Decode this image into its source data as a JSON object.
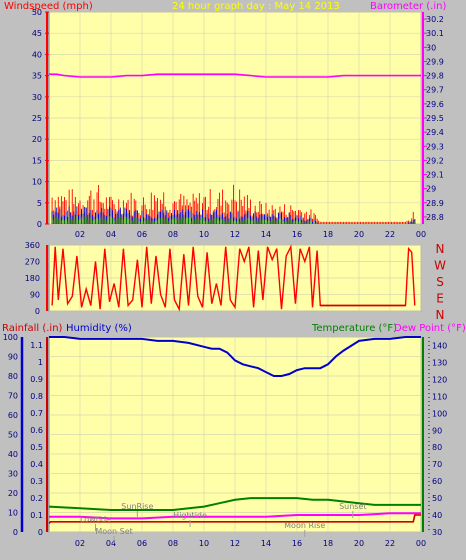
{
  "colors": {
    "background": "#c0c0c0",
    "plot": "#ffffaa",
    "grid": "#d8d8b0",
    "wind_axis": "#ff0000",
    "baro_axis": "#ff00ff",
    "humidity": "#0000cc",
    "temperature": "#008000",
    "dewpoint": "#ff00ff",
    "rain": "#cc0000",
    "wind_avg": "#0000cc",
    "wind_calm": "#008000",
    "title": "#ffff00"
  },
  "chart_data": [
    {
      "type": "line",
      "id": "wind-baro",
      "title": "24 hour graph day : May 14 2013",
      "left_label": "Windspeed (mph)",
      "right_label": "Barometer (.in)",
      "x_ticks": [
        "02",
        "04",
        "06",
        "08",
        "10",
        "12",
        "14",
        "16",
        "18",
        "20",
        "22",
        "00"
      ],
      "y_left_ticks": [
        "0",
        "5",
        "10",
        "15",
        "20",
        "25",
        "30",
        "35",
        "40",
        "45",
        "50"
      ],
      "y_left_range": [
        0,
        50
      ],
      "y_right_ticks": [
        "28.8",
        "28.9",
        "29",
        "29.1",
        "29.2",
        "29.3",
        "29.4",
        "29.5",
        "29.6",
        "29.7",
        "29.8",
        "29.9",
        "30",
        "30.1",
        "30.2"
      ],
      "y_right_range": [
        28.75,
        30.25
      ],
      "grid": true,
      "series": [
        {
          "key": "gust",
          "color_key": "wind_axis",
          "x": [
            0.2,
            1,
            2,
            3,
            4,
            5,
            6,
            7,
            8,
            9,
            10,
            11,
            12,
            13,
            14,
            15,
            16,
            17,
            17.5,
            18,
            19,
            20,
            21,
            22,
            22.5,
            23,
            23.6
          ],
          "values": [
            6,
            5,
            5,
            6,
            4,
            5,
            4,
            6,
            5,
            4,
            5,
            5,
            6,
            4,
            3,
            3,
            3,
            2,
            0.5,
            0.5,
            0.5,
            0.5,
            0.5,
            0.5,
            0.5,
            0.5,
            2
          ]
        },
        {
          "key": "average",
          "color_key": "wind_avg",
          "x": [
            0.2,
            2,
            4,
            6,
            8,
            10,
            12,
            14,
            16,
            17,
            17.5,
            23,
            23.6
          ],
          "values": [
            3,
            3,
            3,
            2.5,
            2.5,
            2.5,
            2.5,
            2,
            2,
            1,
            0,
            0,
            1
          ]
        },
        {
          "key": "barometer",
          "color_key": "baro_axis",
          "x": [
            0,
            0.5,
            1,
            2,
            3,
            4,
            5,
            6,
            7,
            8,
            9,
            10,
            11,
            12,
            13,
            14,
            15,
            16,
            17,
            18,
            19,
            20,
            21,
            22,
            23,
            24
          ],
          "values": [
            29.81,
            29.81,
            29.8,
            29.79,
            29.79,
            29.79,
            29.8,
            29.8,
            29.81,
            29.81,
            29.81,
            29.81,
            29.81,
            29.81,
            29.8,
            29.79,
            29.79,
            29.79,
            29.79,
            29.79,
            29.8,
            29.8,
            29.8,
            29.8,
            29.8,
            29.8
          ]
        }
      ]
    },
    {
      "type": "line",
      "id": "wind-direction",
      "y_left_ticks": [
        "0",
        "90",
        "180",
        "270",
        "360"
      ],
      "y_left_range": [
        0,
        360
      ],
      "compass": [
        "N",
        "W",
        "S",
        "E",
        "N"
      ],
      "grid": true,
      "series": [
        {
          "key": "direction",
          "color_key": "wind_axis",
          "x": [
            0.2,
            0.4,
            0.6,
            0.9,
            1.2,
            1.5,
            1.8,
            2.1,
            2.4,
            2.7,
            3,
            3.3,
            3.6,
            3.9,
            4.2,
            4.5,
            4.8,
            5.1,
            5.4,
            5.7,
            6,
            6.3,
            6.6,
            6.9,
            7.2,
            7.5,
            7.8,
            8.1,
            8.4,
            8.7,
            9,
            9.3,
            9.6,
            9.9,
            10.2,
            10.5,
            10.8,
            11.1,
            11.4,
            11.7,
            12,
            12.3,
            12.6,
            12.9,
            13.2,
            13.5,
            13.8,
            14.1,
            14.4,
            14.7,
            15,
            15.3,
            15.6,
            15.9,
            16.2,
            16.5,
            16.8,
            17,
            17.3,
            17.5,
            23.0,
            23.2,
            23.4,
            23.6
          ],
          "values": [
            30,
            350,
            60,
            340,
            40,
            80,
            300,
            20,
            120,
            30,
            270,
            10,
            340,
            50,
            150,
            20,
            340,
            30,
            60,
            280,
            20,
            350,
            40,
            300,
            90,
            20,
            340,
            60,
            10,
            310,
            30,
            350,
            80,
            20,
            320,
            40,
            150,
            30,
            350,
            60,
            20,
            340,
            270,
            350,
            20,
            330,
            60,
            350,
            280,
            340,
            10,
            300,
            350,
            40,
            340,
            270,
            350,
            20,
            330,
            30,
            30,
            340,
            320,
            30
          ]
        }
      ]
    },
    {
      "type": "line",
      "id": "rain-hum-temp",
      "left_label_rain": "Rainfall (.in)",
      "left_label_hum": "Humidity (%)",
      "right_label_temp": "Temperature (°F)",
      "right_label_dew": "Dew Point (°F)",
      "x_ticks": [
        "02",
        "04",
        "06",
        "08",
        "10",
        "12",
        "14",
        "16",
        "18",
        "20",
        "22",
        "00"
      ],
      "hum_ticks": [
        "0",
        "10",
        "20",
        "30",
        "40",
        "50",
        "60",
        "70",
        "80",
        "90",
        "100"
      ],
      "hum_range": [
        0,
        100
      ],
      "rain_ticks": [
        "0",
        "0.1",
        "0.2",
        "0.3",
        "0.4",
        "0.5",
        "0.6",
        "0.7",
        "0.8",
        "0.9",
        "1",
        "1.1"
      ],
      "rain_range": [
        0,
        1.1
      ],
      "temp_ticks": [
        "30",
        "40",
        "50",
        "60",
        "70",
        "80",
        "90",
        "100",
        "110",
        "120",
        "130",
        "140"
      ],
      "temp_range": [
        30,
        145
      ],
      "grid": true,
      "annotations": [
        "SunRise",
        "Hightide",
        "Sunset",
        "Lowtide",
        "Moon Set",
        "Moon Rise"
      ],
      "series": [
        {
          "key": "humidity",
          "color_key": "humidity",
          "x": [
            0,
            1,
            2,
            3,
            4,
            5,
            6,
            7,
            8,
            9,
            10,
            10.5,
            11,
            11.5,
            12,
            12.5,
            13,
            13.5,
            14,
            14.5,
            15,
            15.5,
            16,
            16.5,
            17,
            17.5,
            18,
            18.5,
            19,
            20,
            21,
            22,
            23,
            24
          ],
          "values": [
            100,
            100,
            99,
            99,
            99,
            99,
            99,
            98,
            98,
            97,
            95,
            94,
            94,
            92,
            88,
            86,
            85,
            84,
            82,
            80,
            80,
            81,
            83,
            84,
            84,
            84,
            86,
            90,
            93,
            98,
            99,
            99,
            100,
            100
          ]
        },
        {
          "key": "temperature",
          "color_key": "temperature",
          "x": [
            0,
            2,
            4,
            6,
            8,
            10,
            11,
            12,
            13,
            14,
            15,
            16,
            17,
            18,
            19,
            20,
            21,
            22,
            23,
            24
          ],
          "values": [
            45,
            44,
            43,
            43,
            43,
            45,
            47,
            49,
            50,
            50,
            50,
            50,
            49,
            49,
            48,
            47,
            46,
            46,
            46,
            46
          ]
        },
        {
          "key": "dewpoint",
          "color_key": "dewpoint",
          "x": [
            0,
            2,
            4,
            6,
            8,
            10,
            12,
            14,
            16,
            18,
            20,
            22,
            24
          ],
          "values": [
            39,
            39,
            38,
            38,
            39,
            39,
            39,
            39,
            40,
            40,
            40,
            41,
            41
          ]
        },
        {
          "key": "rain",
          "color_key": "rain",
          "x": [
            0,
            0.1,
            1,
            22,
            23,
            23.5,
            23.6,
            24
          ],
          "values": [
            0.05,
            0.06,
            0.06,
            0.06,
            0.06,
            0.06,
            0.1,
            0.1
          ]
        }
      ]
    }
  ]
}
